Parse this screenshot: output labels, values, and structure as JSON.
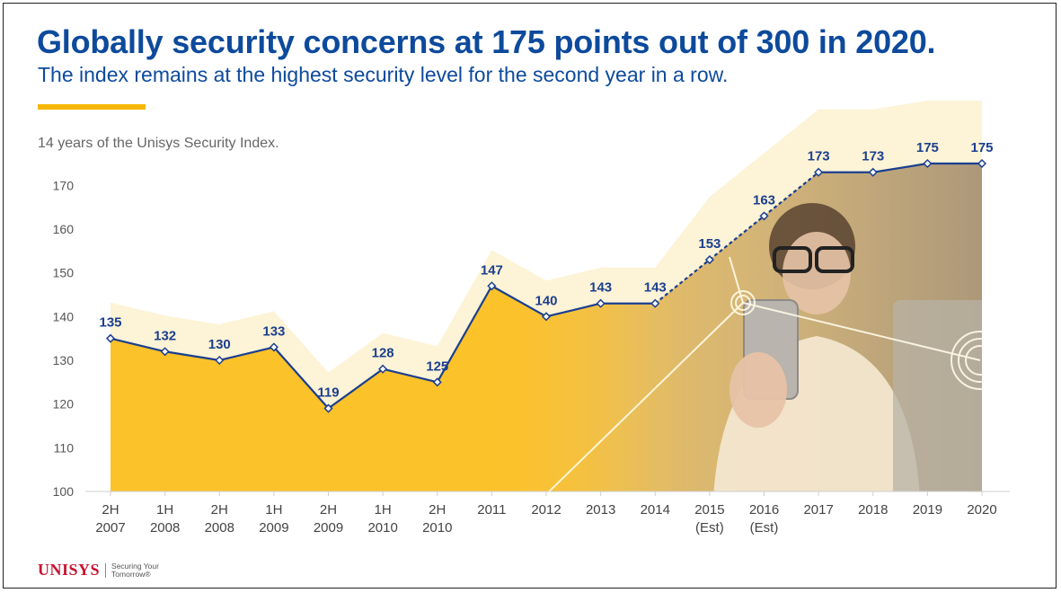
{
  "header": {
    "title": "Globally security concerns at 175 points out of 300 in 2020.",
    "subtitle": "The index remains at the highest security level for the second year in a row."
  },
  "caption": "14 years of the Unisys Security Index.",
  "brand": {
    "name": "UNISYS",
    "tagline": "Securing Your Tomorrow®"
  },
  "colors": {
    "title": "#0d4a9c",
    "accent": "#f5b800",
    "area": "#fcc22a",
    "area_halo": "#fdf1cf",
    "line": "#1b3f8f"
  },
  "chart_data": {
    "type": "area",
    "categories": [
      [
        "2H",
        "2007"
      ],
      [
        "1H",
        "2008"
      ],
      [
        "2H",
        "2008"
      ],
      [
        "1H",
        "2009"
      ],
      [
        "2H",
        "2009"
      ],
      [
        "1H",
        "2010"
      ],
      [
        "2H",
        "2010"
      ],
      [
        "2011"
      ],
      [
        "2012"
      ],
      [
        "2013"
      ],
      [
        "2014"
      ],
      [
        "2015",
        "(Est)"
      ],
      [
        "2016",
        "(Est)"
      ],
      [
        "2017"
      ],
      [
        "2018"
      ],
      [
        "2019"
      ],
      [
        "2020"
      ]
    ],
    "values": [
      135,
      132,
      130,
      133,
      119,
      128,
      125,
      147,
      140,
      143,
      143,
      153,
      163,
      173,
      173,
      175,
      175
    ],
    "estimated_points": [
      11,
      12
    ],
    "ylim": [
      100,
      175
    ],
    "yticks": [
      100,
      110,
      120,
      130,
      140,
      150,
      160,
      170
    ],
    "grid": false,
    "legend": "none"
  }
}
